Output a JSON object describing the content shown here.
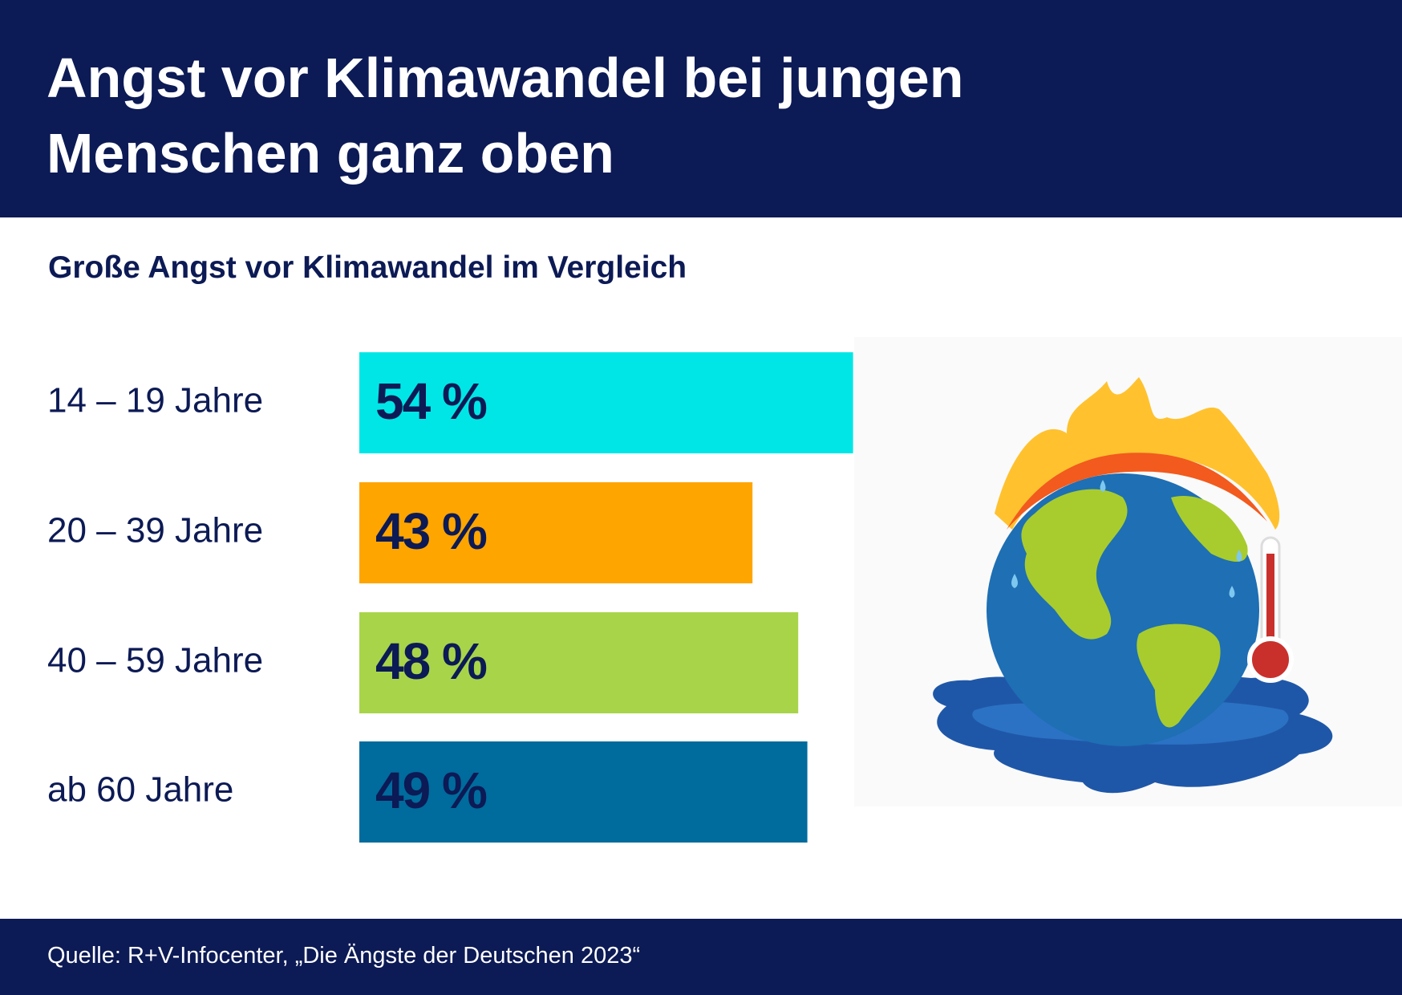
{
  "chart_data": {
    "type": "hbar",
    "title": "Angst vor Klimawandel bei jungen Menschen ganz oben",
    "subtitle": "Große Angst vor Klimawandel im Vergleich",
    "categories": [
      "14 – 19 Jahre",
      "20 – 39 Jahre",
      "40 – 59 Jahre",
      "ab 60 Jahre"
    ],
    "values": [
      54,
      43,
      48,
      49
    ],
    "value_labels": [
      "54 %",
      "43 %",
      "48 %",
      "49 %"
    ],
    "colors": [
      "#00e6e6",
      "#ffa500",
      "#a8d44a",
      "#006b9d"
    ],
    "source": "Quelle: R+V-Infocenter, „Die Ängste der Deutschen 2023“"
  }
}
